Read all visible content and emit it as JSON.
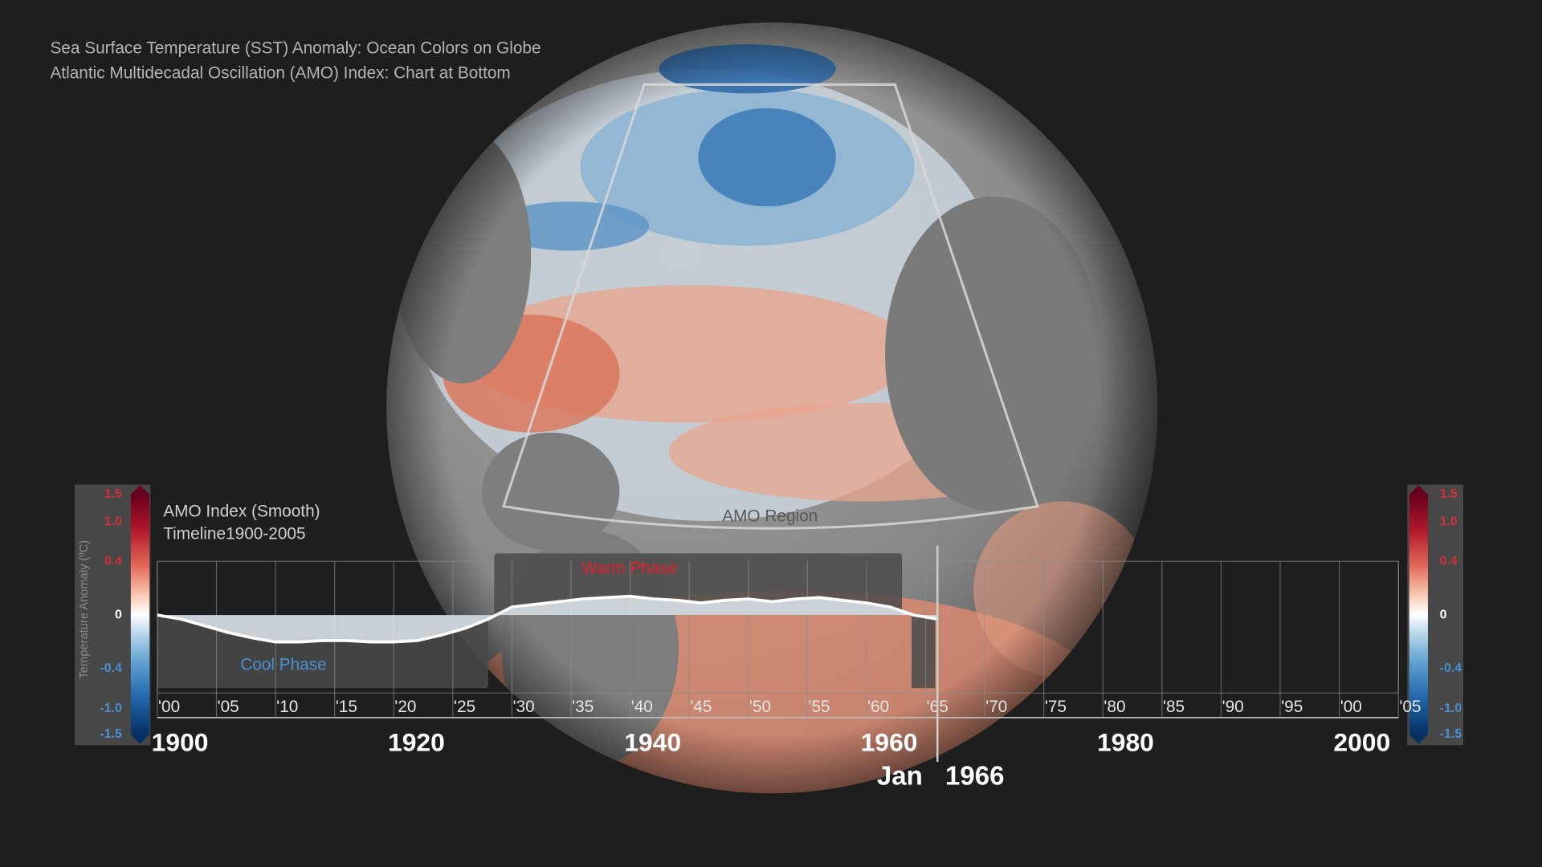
{
  "header": {
    "line1": "Sea Surface Temperature (SST) Anomaly: Ocean Colors on Globe",
    "line2": "Atlantic Multidecadal Oscillation (AMO) Index: Chart at Bottom"
  },
  "region_label": "AMO Region",
  "colorbar": {
    "label": "Temperature Anomaly (ºC)",
    "ticks": [
      1.5,
      {
        "value": 1,
        "label": "1.0"
      },
      0.4,
      0,
      -0.4,
      {
        "value": -1,
        "label": "-1.0"
      },
      -1.5
    ]
  },
  "chart_data": {
    "type": "area",
    "title": "AMO Index (Smooth)",
    "subtitle": "Timeline1900-2005",
    "x": [
      1900,
      1902,
      1904,
      1906,
      1908,
      1910,
      1912,
      1914,
      1916,
      1918,
      1920,
      1922,
      1924,
      1926,
      1928,
      1930,
      1932,
      1934,
      1936,
      1938,
      1940,
      1942,
      1944,
      1946,
      1948,
      1950,
      1952,
      1954,
      1956,
      1958,
      1960,
      1962,
      1964,
      1966
    ],
    "values": [
      0,
      -0.03,
      -0.08,
      -0.13,
      -0.17,
      -0.2,
      -0.2,
      -0.19,
      -0.19,
      -0.2,
      -0.2,
      -0.19,
      -0.15,
      -0.1,
      -0.03,
      0.06,
      0.08,
      0.1,
      0.12,
      0.13,
      0.14,
      0.12,
      0.11,
      0.09,
      0.11,
      0.12,
      0.1,
      0.12,
      0.13,
      0.11,
      0.09,
      0.06,
      0,
      -0.03
    ],
    "color": "#ffffff",
    "xlim": [
      1900,
      2005
    ],
    "ylim": [
      -0.58,
      0.4
    ],
    "xticks": [
      {
        "value": 1900,
        "label": "'00"
      },
      {
        "value": 1905,
        "label": "'05"
      },
      {
        "value": 1910,
        "label": "'10"
      },
      {
        "value": 1915,
        "label": "'15"
      },
      {
        "value": 1920,
        "label": "'20"
      },
      {
        "value": 1925,
        "label": "'25"
      },
      {
        "value": 1930,
        "label": "'30"
      },
      {
        "value": 1935,
        "label": "'35"
      },
      {
        "value": 1940,
        "label": "'40"
      },
      {
        "value": 1945,
        "label": "'45"
      },
      {
        "value": 1950,
        "label": "'50"
      },
      {
        "value": 1955,
        "label": "'55"
      },
      {
        "value": 1960,
        "label": "'60"
      },
      {
        "value": 1965,
        "label": "'65"
      },
      {
        "value": 1970,
        "label": "'70"
      },
      {
        "value": 1975,
        "label": "'75"
      },
      {
        "value": 1980,
        "label": "'80"
      },
      {
        "value": 1985,
        "label": "'85"
      },
      {
        "value": 1990,
        "label": "'90"
      },
      {
        "value": 1995,
        "label": "'95"
      },
      {
        "value": 2000,
        "label": "'00"
      },
      {
        "value": 2005,
        "label": "'05"
      }
    ],
    "major_xticks": [
      1900,
      1920,
      1940,
      1960,
      1980,
      2000
    ],
    "grid": true,
    "phases": [
      {
        "label": "Cool Phase",
        "start": 1900,
        "end": 1928,
        "color": "#4a90d0"
      },
      {
        "label": "Warm Phase",
        "start": 1928.5,
        "end": 1963,
        "color": "#e0202a"
      }
    ],
    "current": {
      "month": "Jan",
      "year": 1966
    }
  }
}
